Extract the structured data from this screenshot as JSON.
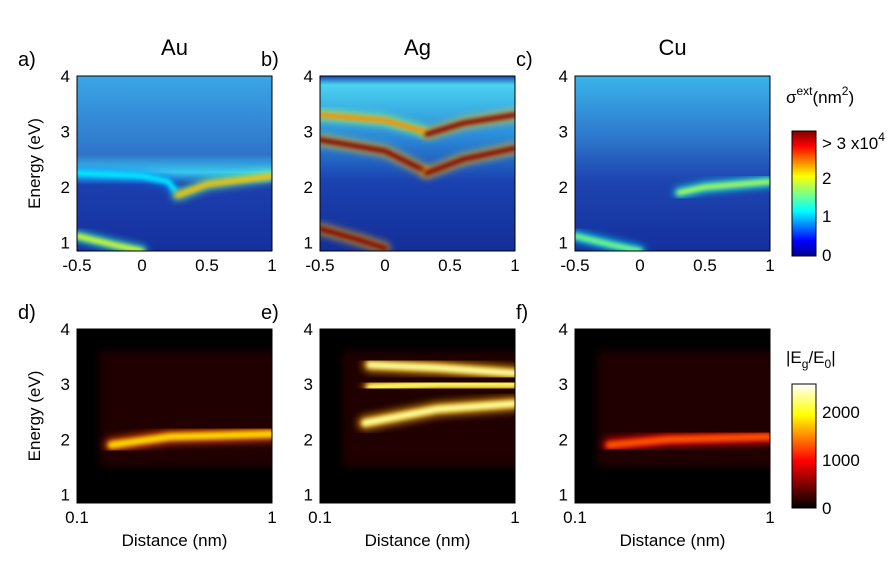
{
  "chart_data": [
    {
      "panel": "a)",
      "title": "Au",
      "type": "heatmap",
      "colormap": "jet",
      "x_ticks": [
        "-0.5",
        "0",
        "0.5",
        "1"
      ],
      "xlim": [
        -0.5,
        1
      ],
      "y_ticks": [
        "1",
        "2",
        "3",
        "4"
      ],
      "ylim": [
        0.85,
        4
      ],
      "ylabel": "Energy (eV)",
      "xlabel": "",
      "features": [
        {
          "kind": "band",
          "points": [
            [
              -0.5,
              2.25
            ],
            [
              0.0,
              2.2
            ],
            [
              0.2,
              2.1
            ],
            [
              0.25,
              1.95
            ]
          ],
          "level": 0.35
        },
        {
          "kind": "band",
          "points": [
            [
              0.27,
              1.85
            ],
            [
              0.5,
              2.05
            ],
            [
              1.0,
              2.2
            ]
          ],
          "level": 0.7
        },
        {
          "kind": "band",
          "points": [
            [
              -0.5,
              1.12
            ],
            [
              -0.2,
              0.95
            ],
            [
              0.0,
              0.85
            ]
          ],
          "level": 0.6
        }
      ]
    },
    {
      "panel": "b)",
      "title": "Ag",
      "type": "heatmap",
      "colormap": "jet",
      "x_ticks": [
        "-0.5",
        "0",
        "0.5",
        "1"
      ],
      "xlim": [
        -0.5,
        1
      ],
      "y_ticks": [
        "1",
        "2",
        "3",
        "4"
      ],
      "ylim": [
        0.85,
        4
      ],
      "ylabel": "",
      "xlabel": "",
      "features": [
        {
          "kind": "band",
          "points": [
            [
              -0.5,
              3.3
            ],
            [
              0.0,
              3.2
            ],
            [
              0.3,
              3.0
            ]
          ],
          "level": 0.75
        },
        {
          "kind": "band",
          "points": [
            [
              -0.5,
              2.85
            ],
            [
              0.0,
              2.65
            ],
            [
              0.3,
              2.3
            ]
          ],
          "level": 1.0
        },
        {
          "kind": "band",
          "points": [
            [
              0.32,
              2.95
            ],
            [
              0.6,
              3.15
            ],
            [
              1.0,
              3.3
            ]
          ],
          "level": 1.0
        },
        {
          "kind": "band",
          "points": [
            [
              0.32,
              2.25
            ],
            [
              0.6,
              2.5
            ],
            [
              1.0,
              2.7
            ]
          ],
          "level": 1.0
        },
        {
          "kind": "band",
          "points": [
            [
              -0.5,
              1.25
            ],
            [
              -0.2,
              1.05
            ],
            [
              0.0,
              0.9
            ]
          ],
          "level": 1.0
        }
      ]
    },
    {
      "panel": "c)",
      "title": "Cu",
      "type": "heatmap",
      "colormap": "jet",
      "x_ticks": [
        "-0.5",
        "0",
        "0.5",
        "1"
      ],
      "xlim": [
        -0.5,
        1
      ],
      "y_ticks": [
        "1",
        "2",
        "3",
        "4"
      ],
      "ylim": [
        0.85,
        4
      ],
      "ylabel": "",
      "xlabel": "",
      "features": [
        {
          "kind": "band",
          "points": [
            [
              0.3,
              1.9
            ],
            [
              0.5,
              2.0
            ],
            [
              1.0,
              2.1
            ]
          ],
          "level": 0.55
        },
        {
          "kind": "band",
          "points": [
            [
              -0.5,
              1.12
            ],
            [
              -0.2,
              0.95
            ],
            [
              0.0,
              0.85
            ]
          ],
          "level": 0.5
        }
      ]
    },
    {
      "panel": "d)",
      "title": "",
      "type": "heatmap",
      "colormap": "hot",
      "x_ticks": [
        "0.1",
        "1"
      ],
      "xlim": [
        0.1,
        1
      ],
      "xscale": "log",
      "y_ticks": [
        "1",
        "2",
        "3",
        "4"
      ],
      "ylim": [
        0.85,
        4
      ],
      "ylabel": "Energy (eV)",
      "xlabel": "Distance (nm)",
      "features": [
        {
          "kind": "band",
          "points": [
            [
              0.15,
              1.9
            ],
            [
              0.3,
              2.05
            ],
            [
              1.0,
              2.1
            ]
          ],
          "level": 0.7
        }
      ]
    },
    {
      "panel": "e)",
      "title": "",
      "type": "heatmap",
      "colormap": "hot",
      "x_ticks": [
        "0.1",
        "1"
      ],
      "xlim": [
        0.1,
        1
      ],
      "xscale": "log",
      "y_ticks": [
        "1",
        "2",
        "3",
        "4"
      ],
      "ylim": [
        0.85,
        4
      ],
      "ylabel": "",
      "xlabel": "Distance (nm)",
      "features": [
        {
          "kind": "band",
          "points": [
            [
              0.18,
              3.35
            ],
            [
              0.4,
              3.3
            ],
            [
              1.0,
              3.2
            ]
          ],
          "level": 0.9
        },
        {
          "kind": "band",
          "points": [
            [
              0.18,
              2.95
            ],
            [
              0.4,
              3.0
            ],
            [
              1.0,
              3.0
            ]
          ],
          "level": 0.85
        },
        {
          "kind": "band",
          "points": [
            [
              0.17,
              2.3
            ],
            [
              0.4,
              2.55
            ],
            [
              1.0,
              2.65
            ]
          ],
          "level": 0.9
        }
      ]
    },
    {
      "panel": "f)",
      "title": "",
      "type": "heatmap",
      "colormap": "hot",
      "x_ticks": [
        "0.1",
        "1"
      ],
      "xlim": [
        0.1,
        1
      ],
      "xscale": "log",
      "y_ticks": [
        "1",
        "2",
        "3",
        "4"
      ],
      "ylim": [
        0.85,
        4
      ],
      "ylabel": "",
      "xlabel": "Distance (nm)",
      "features": [
        {
          "kind": "band",
          "points": [
            [
              0.15,
              1.9
            ],
            [
              0.3,
              2.0
            ],
            [
              1.0,
              2.05
            ]
          ],
          "level": 0.5
        }
      ]
    }
  ],
  "colorbars": [
    {
      "label_main": "σ",
      "label_sup": "ext",
      "label_tail": "(nm",
      "label_tail_sup": "2",
      "label_end": ")",
      "top_label": "> 3 x10",
      "top_label_sup": "4",
      "ticks": [
        "2",
        "1",
        "0"
      ],
      "range": [
        0,
        3
      ],
      "colormap": "jet"
    },
    {
      "label_pre": "|E",
      "label_sub": "g",
      "label_mid": "/E",
      "label_sub2": "0",
      "label_end": "|",
      "ticks": [
        "2000",
        "1000",
        "0"
      ],
      "range": [
        0,
        2600
      ],
      "colormap": "hot"
    }
  ]
}
